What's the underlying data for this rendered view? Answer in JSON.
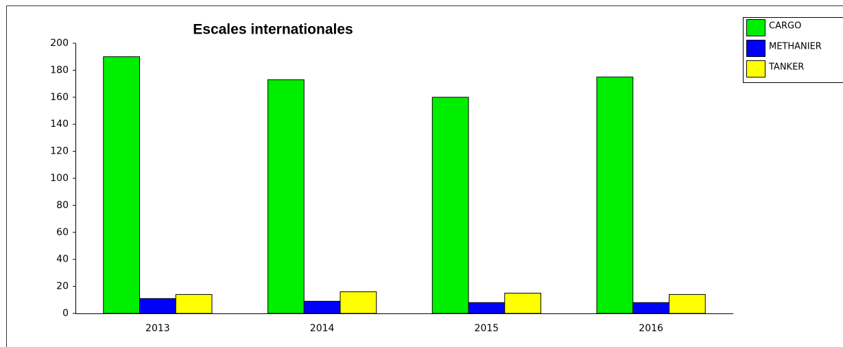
{
  "chart_data": {
    "type": "bar",
    "title": "Escales internationales",
    "categories": [
      "2013",
      "2014",
      "2015",
      "2016"
    ],
    "series": [
      {
        "name": "CARGO",
        "color": "#00ee00",
        "values": [
          190,
          173,
          160,
          175
        ]
      },
      {
        "name": "METHANIER",
        "color": "#0000ff",
        "values": [
          11,
          9,
          8,
          8
        ]
      },
      {
        "name": "TANKER",
        "color": "#ffff00",
        "values": [
          14,
          16,
          15,
          14
        ]
      }
    ],
    "ylim": [
      0,
      200
    ],
    "yticks": [
      0,
      20,
      40,
      60,
      80,
      100,
      120,
      140,
      160,
      180,
      200
    ],
    "grid": false,
    "legend": "upper right"
  }
}
